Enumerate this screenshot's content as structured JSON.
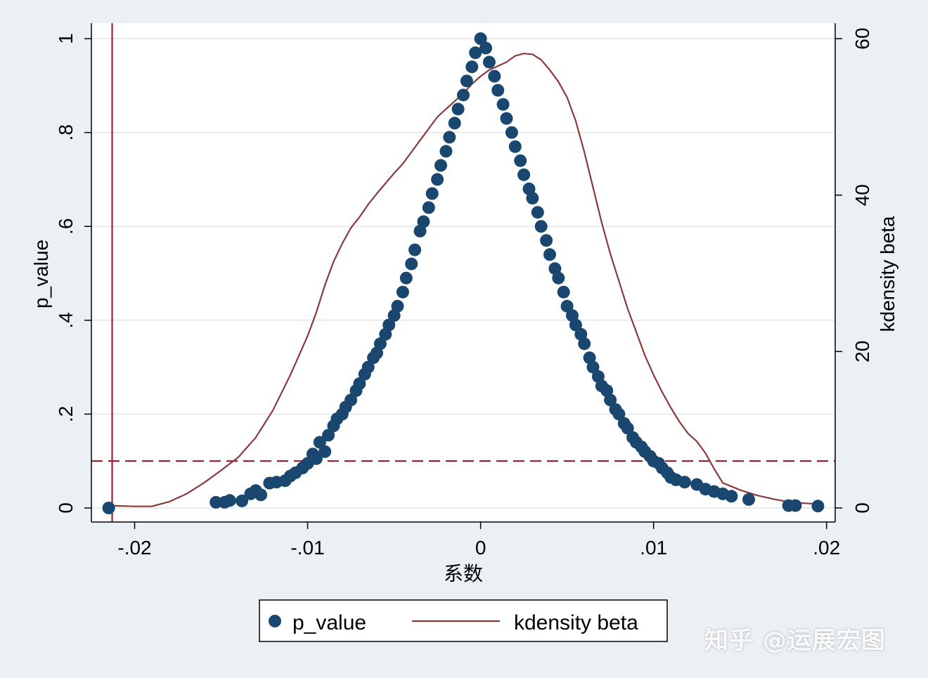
{
  "chart_data": {
    "type": "scatter",
    "title": "",
    "xlabel": "系数",
    "ylabel": "p_value",
    "y2label": "kdensity beta",
    "xlim": [
      -0.0225,
      0.0205
    ],
    "ylim": [
      -0.03,
      1.033
    ],
    "y2lim": [
      -1.8,
      61.98
    ],
    "x_ticks": [
      -0.02,
      -0.01,
      0,
      0.01,
      0.02
    ],
    "x_tick_labels": [
      "-.02",
      "-.01",
      "0",
      ".01",
      ".02"
    ],
    "y_ticks": [
      0,
      0.2,
      0.4,
      0.6,
      0.8,
      1
    ],
    "y_tick_labels": [
      "0",
      ".2",
      ".4",
      ".6",
      ".8",
      "1"
    ],
    "y2_ticks": [
      0,
      20,
      40,
      60
    ],
    "y2_tick_labels": [
      "0",
      "20",
      "40",
      "60"
    ],
    "grid": true,
    "legend_position": "bottom-center",
    "reference_lines": [
      {
        "type": "vertical",
        "axis": "x",
        "value": -0.0213,
        "style": "solid",
        "color": "#a0202f"
      },
      {
        "type": "horizontal",
        "axis": "y",
        "value": 0.1,
        "style": "dashed",
        "color": "#8b1a2b"
      }
    ],
    "series": [
      {
        "name": "p_value",
        "kind": "scatter",
        "axis": "y",
        "color": "#1a476f",
        "points": [
          [
            -0.0215,
            0.0
          ],
          [
            -0.0153,
            0.012
          ],
          [
            -0.0148,
            0.012
          ],
          [
            -0.0145,
            0.016
          ],
          [
            -0.0138,
            0.015
          ],
          [
            -0.0133,
            0.03
          ],
          [
            -0.013,
            0.037
          ],
          [
            -0.0127,
            0.028
          ],
          [
            -0.0122,
            0.053
          ],
          [
            -0.0118,
            0.055
          ],
          [
            -0.0113,
            0.058
          ],
          [
            -0.011,
            0.068
          ],
          [
            -0.0107,
            0.075
          ],
          [
            -0.0103,
            0.085
          ],
          [
            -0.01,
            0.095
          ],
          [
            -0.0097,
            0.115
          ],
          [
            -0.0095,
            0.105
          ],
          [
            -0.0093,
            0.14
          ],
          [
            -0.009,
            0.12
          ],
          [
            -0.0088,
            0.155
          ],
          [
            -0.0085,
            0.175
          ],
          [
            -0.0083,
            0.19
          ],
          [
            -0.008,
            0.2
          ],
          [
            -0.0078,
            0.215
          ],
          [
            -0.0075,
            0.23
          ],
          [
            -0.0072,
            0.25
          ],
          [
            -0.007,
            0.265
          ],
          [
            -0.0067,
            0.285
          ],
          [
            -0.0065,
            0.3
          ],
          [
            -0.0062,
            0.32
          ],
          [
            -0.006,
            0.33
          ],
          [
            -0.0058,
            0.35
          ],
          [
            -0.0055,
            0.37
          ],
          [
            -0.0053,
            0.39
          ],
          [
            -0.005,
            0.41
          ],
          [
            -0.0048,
            0.43
          ],
          [
            -0.0045,
            0.46
          ],
          [
            -0.0043,
            0.49
          ],
          [
            -0.004,
            0.52
          ],
          [
            -0.0038,
            0.55
          ],
          [
            -0.0035,
            0.59
          ],
          [
            -0.0033,
            0.61
          ],
          [
            -0.003,
            0.64
          ],
          [
            -0.0028,
            0.67
          ],
          [
            -0.0025,
            0.7
          ],
          [
            -0.0023,
            0.73
          ],
          [
            -0.002,
            0.76
          ],
          [
            -0.0018,
            0.79
          ],
          [
            -0.0015,
            0.82
          ],
          [
            -0.0013,
            0.85
          ],
          [
            -0.001,
            0.88
          ],
          [
            -0.0008,
            0.91
          ],
          [
            -0.0005,
            0.94
          ],
          [
            -0.0003,
            0.97
          ],
          [
            0.0,
            1.0
          ],
          [
            0.0003,
            0.98
          ],
          [
            0.0005,
            0.95
          ],
          [
            0.0008,
            0.92
          ],
          [
            0.001,
            0.89
          ],
          [
            0.0013,
            0.86
          ],
          [
            0.0015,
            0.83
          ],
          [
            0.0018,
            0.8
          ],
          [
            0.002,
            0.77
          ],
          [
            0.0023,
            0.74
          ],
          [
            0.0025,
            0.71
          ],
          [
            0.0028,
            0.68
          ],
          [
            0.003,
            0.66
          ],
          [
            0.0033,
            0.63
          ],
          [
            0.0035,
            0.6
          ],
          [
            0.0038,
            0.57
          ],
          [
            0.004,
            0.54
          ],
          [
            0.0043,
            0.51
          ],
          [
            0.0045,
            0.49
          ],
          [
            0.0048,
            0.46
          ],
          [
            0.005,
            0.43
          ],
          [
            0.0053,
            0.41
          ],
          [
            0.0055,
            0.39
          ],
          [
            0.0058,
            0.37
          ],
          [
            0.006,
            0.35
          ],
          [
            0.0063,
            0.32
          ],
          [
            0.0065,
            0.3
          ],
          [
            0.0068,
            0.28
          ],
          [
            0.007,
            0.26
          ],
          [
            0.0073,
            0.25
          ],
          [
            0.0075,
            0.23
          ],
          [
            0.0078,
            0.21
          ],
          [
            0.008,
            0.2
          ],
          [
            0.0083,
            0.18
          ],
          [
            0.0085,
            0.17
          ],
          [
            0.0088,
            0.15
          ],
          [
            0.009,
            0.14
          ],
          [
            0.0093,
            0.13
          ],
          [
            0.0095,
            0.12
          ],
          [
            0.0098,
            0.11
          ],
          [
            0.01,
            0.1
          ],
          [
            0.0103,
            0.095
          ],
          [
            0.0105,
            0.085
          ],
          [
            0.0108,
            0.075
          ],
          [
            0.011,
            0.065
          ],
          [
            0.0113,
            0.06
          ],
          [
            0.0118,
            0.055
          ],
          [
            0.0125,
            0.05
          ],
          [
            0.013,
            0.04
          ],
          [
            0.0135,
            0.035
          ],
          [
            0.014,
            0.03
          ],
          [
            0.0145,
            0.025
          ],
          [
            0.0155,
            0.018
          ],
          [
            0.0178,
            0.005
          ],
          [
            0.0182,
            0.005
          ],
          [
            0.0195,
            0.004
          ]
        ]
      },
      {
        "name": "kdensity beta",
        "kind": "line",
        "axis": "y2",
        "color": "#8b3a3a",
        "points": [
          [
            -0.0215,
            0.3
          ],
          [
            -0.02,
            0.2
          ],
          [
            -0.019,
            0.2
          ],
          [
            -0.018,
            0.8
          ],
          [
            -0.017,
            1.8
          ],
          [
            -0.016,
            3.2
          ],
          [
            -0.015,
            4.8
          ],
          [
            -0.014,
            6.5
          ],
          [
            -0.013,
            9.0
          ],
          [
            -0.012,
            12.5
          ],
          [
            -0.011,
            17.0
          ],
          [
            -0.01,
            22.0
          ],
          [
            -0.0095,
            25.0
          ],
          [
            -0.009,
            28.5
          ],
          [
            -0.0085,
            31.5
          ],
          [
            -0.008,
            33.8
          ],
          [
            -0.0075,
            35.8
          ],
          [
            -0.007,
            37.2
          ],
          [
            -0.0065,
            38.8
          ],
          [
            -0.006,
            40.2
          ],
          [
            -0.0055,
            41.5
          ],
          [
            -0.005,
            42.8
          ],
          [
            -0.0045,
            44.0
          ],
          [
            -0.004,
            45.5
          ],
          [
            -0.0035,
            47.0
          ],
          [
            -0.003,
            48.5
          ],
          [
            -0.0025,
            50.0
          ],
          [
            -0.002,
            51.0
          ],
          [
            -0.0015,
            52.0
          ],
          [
            -0.001,
            53.0
          ],
          [
            -0.0005,
            54.2
          ],
          [
            0.0,
            55.2
          ],
          [
            0.0005,
            56.0
          ],
          [
            0.001,
            56.5
          ],
          [
            0.0015,
            57.0
          ],
          [
            0.002,
            57.8
          ],
          [
            0.0025,
            58.1
          ],
          [
            0.003,
            58.0
          ],
          [
            0.0035,
            57.3
          ],
          [
            0.004,
            56.0
          ],
          [
            0.0045,
            54.5
          ],
          [
            0.005,
            52.5
          ],
          [
            0.0055,
            49.5
          ],
          [
            0.006,
            45.5
          ],
          [
            0.0065,
            41.0
          ],
          [
            0.007,
            36.5
          ],
          [
            0.0075,
            32.5
          ],
          [
            0.008,
            29.0
          ],
          [
            0.0085,
            25.5
          ],
          [
            0.009,
            22.5
          ],
          [
            0.0095,
            19.5
          ],
          [
            0.01,
            17.0
          ],
          [
            0.0105,
            14.8
          ],
          [
            0.011,
            12.8
          ],
          [
            0.0115,
            11.0
          ],
          [
            0.012,
            9.5
          ],
          [
            0.0125,
            8.5
          ],
          [
            0.013,
            7.0
          ],
          [
            0.0135,
            5.0
          ],
          [
            0.014,
            3.2
          ],
          [
            0.015,
            2.3
          ],
          [
            0.016,
            1.6
          ],
          [
            0.017,
            1.1
          ],
          [
            0.018,
            0.7
          ],
          [
            0.0195,
            0.5
          ]
        ]
      }
    ]
  },
  "legend": {
    "items": [
      {
        "label": "p_value",
        "marker": "dot",
        "color": "#1a476f"
      },
      {
        "label": "kdensity beta",
        "marker": "line",
        "color": "#8b3a3a"
      }
    ]
  },
  "watermark": {
    "text": "知乎 @运展宏图"
  }
}
